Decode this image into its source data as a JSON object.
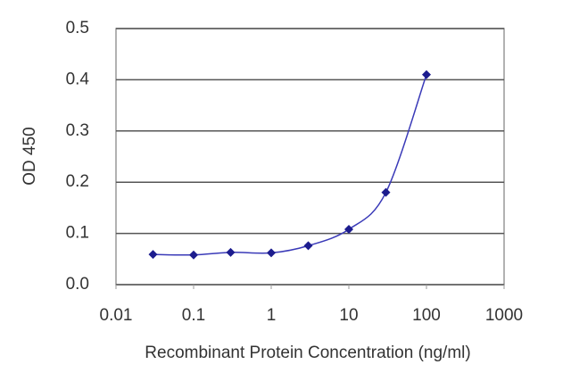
{
  "chart_data": {
    "type": "line",
    "x_label": "Recombinant Protein Concentration (ng/ml)",
    "y_label": "OD 450",
    "x": [
      0.03,
      0.1,
      0.3,
      1,
      3,
      10,
      30,
      100
    ],
    "series": [
      {
        "color": "#1c1c8e",
        "values": [
          0.059,
          0.058,
          0.063,
          0.062,
          0.076,
          0.108,
          0.18,
          0.41
        ]
      }
    ],
    "xlog": true,
    "xlim": [
      0.01,
      1000
    ],
    "xticks": [
      0.01,
      0.1,
      1,
      10,
      100,
      1000
    ],
    "ylim": [
      0,
      0.5
    ],
    "yticks": [
      {
        "value": 0,
        "label": "0.0"
      },
      0.1,
      0.2,
      0.3,
      0.4,
      0.5
    ],
    "grid": true
  }
}
